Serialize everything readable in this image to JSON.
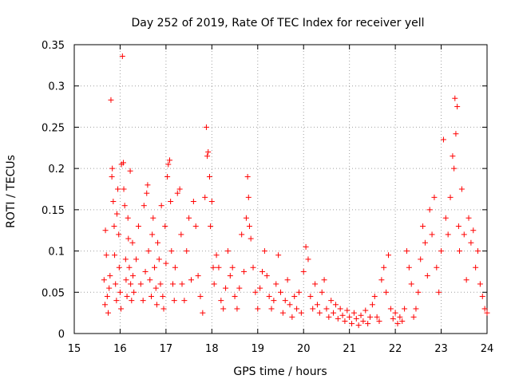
{
  "chart_data": {
    "type": "scatter",
    "title": "Day 252 of 2019, Rate Of TEC Index for receiver yell",
    "xlabel": "GPS time / hours",
    "ylabel": "ROTI / TECUs",
    "xlim": [
      15,
      24
    ],
    "ylim": [
      0,
      0.35
    ],
    "xticks": [
      15,
      16,
      17,
      18,
      19,
      20,
      21,
      22,
      23,
      24
    ],
    "xtick_labels": [
      "15",
      "16",
      "17",
      "18",
      "19",
      "20",
      "21",
      "22",
      "23",
      "24"
    ],
    "yticks": [
      0,
      0.05,
      0.1,
      0.15,
      0.2,
      0.25,
      0.3,
      0.35
    ],
    "ytick_labels": [
      "0",
      "0.05",
      "0.1",
      "0.15",
      "0.2",
      "0.25",
      "0.3",
      "0.35"
    ],
    "grid": true,
    "marker": "+",
    "color": "#ff0000",
    "series": [
      {
        "name": "ROTI",
        "points": [
          [
            15.65,
            0.065
          ],
          [
            15.67,
            0.035
          ],
          [
            15.68,
            0.125
          ],
          [
            15.7,
            0.095
          ],
          [
            15.72,
            0.045
          ],
          [
            15.74,
            0.025
          ],
          [
            15.76,
            0.055
          ],
          [
            15.78,
            0.07
          ],
          [
            15.8,
            0.283
          ],
          [
            15.82,
            0.19
          ],
          [
            15.83,
            0.2
          ],
          [
            15.85,
            0.16
          ],
          [
            15.87,
            0.13
          ],
          [
            15.88,
            0.095
          ],
          [
            15.9,
            0.06
          ],
          [
            15.92,
            0.04
          ],
          [
            15.93,
            0.145
          ],
          [
            15.95,
            0.175
          ],
          [
            15.97,
            0.12
          ],
          [
            15.98,
            0.08
          ],
          [
            16.0,
            0.05
          ],
          [
            16.02,
            0.03
          ],
          [
            16.03,
            0.205
          ],
          [
            16.05,
            0.336
          ],
          [
            16.07,
            0.207
          ],
          [
            16.08,
            0.175
          ],
          [
            16.1,
            0.155
          ],
          [
            16.12,
            0.09
          ],
          [
            16.13,
            0.065
          ],
          [
            16.15,
            0.045
          ],
          [
            16.17,
            0.14
          ],
          [
            16.18,
            0.115
          ],
          [
            16.2,
            0.08
          ],
          [
            16.22,
            0.197
          ],
          [
            16.23,
            0.06
          ],
          [
            16.25,
            0.04
          ],
          [
            16.27,
            0.11
          ],
          [
            16.28,
            0.07
          ],
          [
            16.3,
            0.05
          ],
          [
            16.35,
            0.09
          ],
          [
            16.4,
            0.13
          ],
          [
            16.45,
            0.06
          ],
          [
            16.5,
            0.04
          ],
          [
            16.52,
            0.155
          ],
          [
            16.55,
            0.075
          ],
          [
            16.58,
            0.17
          ],
          [
            16.6,
            0.18
          ],
          [
            16.62,
            0.1
          ],
          [
            16.65,
            0.065
          ],
          [
            16.68,
            0.045
          ],
          [
            16.7,
            0.12
          ],
          [
            16.72,
            0.14
          ],
          [
            16.75,
            0.08
          ],
          [
            16.78,
            0.055
          ],
          [
            16.8,
            0.035
          ],
          [
            16.82,
            0.11
          ],
          [
            16.85,
            0.09
          ],
          [
            16.88,
            0.06
          ],
          [
            16.9,
            0.155
          ],
          [
            16.93,
            0.045
          ],
          [
            16.95,
            0.03
          ],
          [
            16.98,
            0.13
          ],
          [
            17.0,
            0.085
          ],
          [
            17.03,
            0.19
          ],
          [
            17.05,
            0.205
          ],
          [
            17.08,
            0.21
          ],
          [
            17.1,
            0.16
          ],
          [
            17.12,
            0.1
          ],
          [
            17.15,
            0.06
          ],
          [
            17.18,
            0.04
          ],
          [
            17.2,
            0.08
          ],
          [
            17.25,
            0.17
          ],
          [
            17.3,
            0.175
          ],
          [
            17.33,
            0.12
          ],
          [
            17.35,
            0.06
          ],
          [
            17.4,
            0.04
          ],
          [
            17.45,
            0.1
          ],
          [
            17.5,
            0.14
          ],
          [
            17.55,
            0.065
          ],
          [
            17.6,
            0.16
          ],
          [
            17.65,
            0.13
          ],
          [
            17.7,
            0.07
          ],
          [
            17.75,
            0.045
          ],
          [
            17.8,
            0.025
          ],
          [
            17.85,
            0.165
          ],
          [
            17.88,
            0.25
          ],
          [
            17.9,
            0.215
          ],
          [
            17.92,
            0.22
          ],
          [
            17.95,
            0.19
          ],
          [
            17.97,
            0.13
          ],
          [
            18.0,
            0.16
          ],
          [
            18.03,
            0.08
          ],
          [
            18.05,
            0.06
          ],
          [
            18.1,
            0.095
          ],
          [
            18.15,
            0.08
          ],
          [
            18.2,
            0.04
          ],
          [
            18.25,
            0.03
          ],
          [
            18.3,
            0.055
          ],
          [
            18.35,
            0.1
          ],
          [
            18.4,
            0.07
          ],
          [
            18.45,
            0.08
          ],
          [
            18.5,
            0.045
          ],
          [
            18.55,
            0.03
          ],
          [
            18.6,
            0.055
          ],
          [
            18.65,
            0.12
          ],
          [
            18.7,
            0.075
          ],
          [
            18.75,
            0.14
          ],
          [
            18.78,
            0.19
          ],
          [
            18.8,
            0.165
          ],
          [
            18.82,
            0.13
          ],
          [
            18.85,
            0.115
          ],
          [
            18.9,
            0.08
          ],
          [
            18.95,
            0.05
          ],
          [
            19.0,
            0.03
          ],
          [
            19.05,
            0.055
          ],
          [
            19.1,
            0.075
          ],
          [
            19.15,
            0.1
          ],
          [
            19.2,
            0.07
          ],
          [
            19.25,
            0.045
          ],
          [
            19.3,
            0.03
          ],
          [
            19.35,
            0.04
          ],
          [
            19.4,
            0.06
          ],
          [
            19.45,
            0.095
          ],
          [
            19.5,
            0.05
          ],
          [
            19.55,
            0.025
          ],
          [
            19.6,
            0.04
          ],
          [
            19.65,
            0.065
          ],
          [
            19.7,
            0.035
          ],
          [
            19.75,
            0.02
          ],
          [
            19.8,
            0.045
          ],
          [
            19.85,
            0.03
          ],
          [
            19.9,
            0.05
          ],
          [
            19.95,
            0.025
          ],
          [
            20.0,
            0.075
          ],
          [
            20.05,
            0.105
          ],
          [
            20.1,
            0.09
          ],
          [
            20.15,
            0.045
          ],
          [
            20.2,
            0.03
          ],
          [
            20.25,
            0.06
          ],
          [
            20.3,
            0.035
          ],
          [
            20.35,
            0.025
          ],
          [
            20.4,
            0.05
          ],
          [
            20.45,
            0.065
          ],
          [
            20.5,
            0.03
          ],
          [
            20.55,
            0.02
          ],
          [
            20.6,
            0.04
          ],
          [
            20.65,
            0.025
          ],
          [
            20.7,
            0.035
          ],
          [
            20.75,
            0.018
          ],
          [
            20.8,
            0.03
          ],
          [
            20.85,
            0.022
          ],
          [
            20.9,
            0.015
          ],
          [
            20.95,
            0.028
          ],
          [
            21.0,
            0.02
          ],
          [
            21.05,
            0.012
          ],
          [
            21.1,
            0.025
          ],
          [
            21.15,
            0.018
          ],
          [
            21.2,
            0.01
          ],
          [
            21.25,
            0.022
          ],
          [
            21.3,
            0.015
          ],
          [
            21.35,
            0.028
          ],
          [
            21.4,
            0.012
          ],
          [
            21.45,
            0.02
          ],
          [
            21.5,
            0.035
          ],
          [
            21.55,
            0.045
          ],
          [
            21.6,
            0.02
          ],
          [
            21.65,
            0.015
          ],
          [
            21.7,
            0.065
          ],
          [
            21.75,
            0.08
          ],
          [
            21.8,
            0.05
          ],
          [
            21.85,
            0.095
          ],
          [
            21.9,
            0.03
          ],
          [
            21.95,
            0.018
          ],
          [
            22.0,
            0.025
          ],
          [
            22.05,
            0.012
          ],
          [
            22.1,
            0.02
          ],
          [
            22.15,
            0.015
          ],
          [
            22.2,
            0.03
          ],
          [
            22.25,
            0.1
          ],
          [
            22.3,
            0.08
          ],
          [
            22.35,
            0.06
          ],
          [
            22.4,
            0.02
          ],
          [
            22.45,
            0.03
          ],
          [
            22.5,
            0.05
          ],
          [
            22.55,
            0.09
          ],
          [
            22.6,
            0.13
          ],
          [
            22.65,
            0.11
          ],
          [
            22.7,
            0.07
          ],
          [
            22.75,
            0.15
          ],
          [
            22.8,
            0.12
          ],
          [
            22.85,
            0.165
          ],
          [
            22.9,
            0.08
          ],
          [
            22.95,
            0.05
          ],
          [
            23.0,
            0.1
          ],
          [
            23.05,
            0.235
          ],
          [
            23.1,
            0.14
          ],
          [
            23.15,
            0.12
          ],
          [
            23.2,
            0.165
          ],
          [
            23.25,
            0.215
          ],
          [
            23.28,
            0.2
          ],
          [
            23.3,
            0.285
          ],
          [
            23.32,
            0.242
          ],
          [
            23.35,
            0.275
          ],
          [
            23.38,
            0.13
          ],
          [
            23.4,
            0.1
          ],
          [
            23.45,
            0.175
          ],
          [
            23.5,
            0.12
          ],
          [
            23.55,
            0.065
          ],
          [
            23.6,
            0.14
          ],
          [
            23.65,
            0.11
          ],
          [
            23.7,
            0.125
          ],
          [
            23.75,
            0.08
          ],
          [
            23.8,
            0.1
          ],
          [
            23.85,
            0.06
          ],
          [
            23.9,
            0.045
          ],
          [
            23.95,
            0.03
          ],
          [
            24.0,
            0.025
          ]
        ]
      }
    ]
  }
}
